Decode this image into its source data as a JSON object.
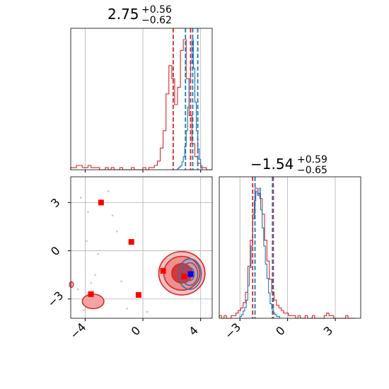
{
  "chart_data": {
    "type": "corner",
    "colors": {
      "posterior_a": "#1f77b4",
      "posterior_b": "#d62728",
      "marker_square": "#ff0000",
      "marker_truth": "#0000ff",
      "grid": "#b0b0b0"
    },
    "x_axis": {
      "ticks": [
        -4,
        0,
        4
      ],
      "tick_labels": [
        "−4",
        "0",
        "4"
      ],
      "range": [
        -5.0,
        4.8
      ]
    },
    "y_axis": {
      "ticks": [
        3,
        0,
        -3
      ],
      "tick_labels": [
        "3",
        "0",
        "−3"
      ],
      "range": [
        -4.2,
        4.6
      ]
    },
    "diag_x_axis": {
      "ticks": [
        -3,
        0,
        3
      ],
      "tick_labels": [
        "−3",
        "0",
        "3"
      ],
      "range": [
        -4.3,
        4.6
      ]
    },
    "param_1": {
      "title_value": "2.75",
      "title_plus": "+0.56",
      "title_minus": "−0.62",
      "quantile_lines_blue": [
        2.95,
        3.8
      ],
      "quantile_lines_red": [
        2.1,
        3.3
      ],
      "median_blue": 3.45,
      "hist_blue": {
        "bin_start": 2.4,
        "bin_width": 0.1,
        "counts": [
          1,
          2,
          3,
          6,
          10,
          18,
          30,
          48,
          70,
          82,
          100,
          78,
          52,
          30,
          16,
          8,
          3
        ]
      },
      "hist_red": {
        "bin_start": -5.0,
        "bin_width": 0.2,
        "counts": [
          1,
          1,
          2,
          2,
          1,
          1,
          2,
          1,
          1,
          1,
          0,
          0,
          1,
          0,
          1,
          0,
          0,
          1,
          0,
          0,
          0,
          1,
          0,
          0,
          0,
          1,
          0,
          1,
          1,
          2,
          4,
          10,
          18,
          35,
          48,
          42,
          30,
          38,
          55,
          60,
          42,
          25,
          12,
          6,
          3,
          1,
          1,
          0,
          0
        ]
      }
    },
    "param_2": {
      "title_value": "−1.54",
      "title_plus": "+0.59",
      "title_minus": "−0.65",
      "quantile_lines_blue": [
        -2.05,
        -0.95
      ],
      "quantile_lines_red": [
        -2.2,
        -0.9
      ],
      "hist_blue": {
        "bin_start": -3.0,
        "bin_width": 0.1,
        "counts": [
          1,
          2,
          4,
          6,
          10,
          18,
          28,
          40,
          55,
          65,
          70,
          68,
          72,
          60,
          50,
          40,
          30,
          22,
          14,
          8,
          5,
          3,
          2,
          1,
          1
        ]
      },
      "hist_red": {
        "bin_start": -4.3,
        "bin_width": 0.15,
        "counts": [
          1,
          0,
          1,
          0,
          0,
          1,
          1,
          2,
          3,
          4,
          6,
          10,
          20,
          30,
          40,
          50,
          48,
          46,
          40,
          30,
          22,
          15,
          10,
          7,
          5,
          4,
          3,
          2,
          2,
          1,
          1,
          1,
          0,
          1,
          0,
          0,
          1,
          0,
          0,
          1,
          0,
          0,
          0,
          0,
          1,
          2,
          1,
          1,
          0,
          0,
          0,
          0,
          0,
          1,
          0,
          0,
          0
        ]
      }
    },
    "joint": {
      "red_squares": [
        [
          -2.9,
          3.0
        ],
        [
          -0.8,
          0.55
        ],
        [
          -0.3,
          -2.75
        ],
        [
          1.4,
          -1.25
        ],
        [
          2.85,
          -1.6
        ],
        [
          -3.6,
          -2.7
        ]
      ],
      "blue_square": [
        3.3,
        -1.45
      ],
      "scatter_points": [
        [
          -4.3,
          3.3
        ],
        [
          -3.8,
          2.4
        ],
        [
          -3.9,
          0.6
        ],
        [
          -3.1,
          -0.2
        ],
        [
          -2.4,
          3.7
        ],
        [
          -2.1,
          2.2
        ],
        [
          -1.5,
          -1.9
        ],
        [
          -2.8,
          -3.3
        ],
        [
          -1.1,
          -3.6
        ],
        [
          0.3,
          -3.8
        ],
        [
          -3.6,
          -2.0
        ],
        [
          -4.5,
          -2.4
        ],
        [
          -4.1,
          -3.7
        ],
        [
          -3.3,
          -1.5
        ],
        [
          -1.8,
          1.2
        ]
      ],
      "red_contour_center": [
        2.7,
        -1.4
      ],
      "red_contour_levels": [
        [
          1.6,
          1.35
        ],
        [
          1.25,
          1.05
        ],
        [
          0.7,
          0.6
        ]
      ],
      "blue_contour_center": [
        3.25,
        -1.45
      ],
      "blue_contour_levels": [
        [
          0.8,
          0.95
        ],
        [
          0.55,
          0.7
        ],
        [
          0.3,
          0.4
        ]
      ],
      "red_blob_center": [
        -3.45,
        -3.15
      ],
      "red_blob_radii": [
        0.75,
        0.45
      ],
      "red_stub_center": [
        -4.95,
        -2.1
      ]
    }
  }
}
